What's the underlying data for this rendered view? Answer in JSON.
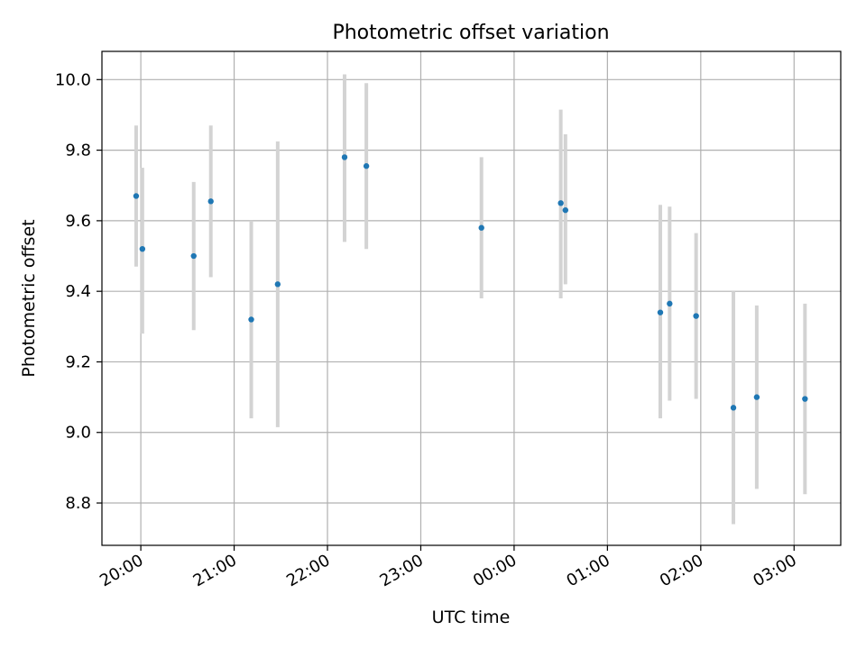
{
  "chart_data": {
    "type": "scatter",
    "title": "Photometric offset variation",
    "xlabel": "UTC time",
    "ylabel": "Photometric offset",
    "xlim": [
      "19:35",
      "03:30"
    ],
    "ylim": [
      8.68,
      10.08
    ],
    "x_ticks": [
      "20:00",
      "21:00",
      "22:00",
      "23:00",
      "00:00",
      "01:00",
      "02:00",
      "03:00"
    ],
    "y_ticks": [
      "8.8",
      "9.0",
      "9.2",
      "9.4",
      "9.6",
      "9.8",
      "10.0"
    ],
    "grid": true,
    "legend": "none",
    "colors": {
      "point": "#1f77b4",
      "errorbar": "#d3d3d3",
      "grid": "#b0b0b0"
    },
    "points": [
      {
        "x": "19:57",
        "y": 9.67,
        "ylow": 9.47,
        "yhigh": 9.87
      },
      {
        "x": "20:01",
        "y": 9.52,
        "ylow": 9.28,
        "yhigh": 9.75
      },
      {
        "x": "20:34",
        "y": 9.5,
        "ylow": 9.29,
        "yhigh": 9.71
      },
      {
        "x": "20:45",
        "y": 9.655,
        "ylow": 9.44,
        "yhigh": 9.87
      },
      {
        "x": "21:11",
        "y": 9.32,
        "ylow": 9.04,
        "yhigh": 9.6
      },
      {
        "x": "21:28",
        "y": 9.42,
        "ylow": 9.015,
        "yhigh": 9.825
      },
      {
        "x": "22:11",
        "y": 9.78,
        "ylow": 9.54,
        "yhigh": 10.015
      },
      {
        "x": "22:25",
        "y": 9.755,
        "ylow": 9.52,
        "yhigh": 9.99
      },
      {
        "x": "23:39",
        "y": 9.58,
        "ylow": 9.38,
        "yhigh": 9.78
      },
      {
        "x": "00:30",
        "y": 9.65,
        "ylow": 9.38,
        "yhigh": 9.915
      },
      {
        "x": "00:33",
        "y": 9.63,
        "ylow": 9.42,
        "yhigh": 9.845
      },
      {
        "x": "01:34",
        "y": 9.34,
        "ylow": 9.04,
        "yhigh": 9.645
      },
      {
        "x": "01:40",
        "y": 9.365,
        "ylow": 9.09,
        "yhigh": 9.64
      },
      {
        "x": "01:57",
        "y": 9.33,
        "ylow": 9.095,
        "yhigh": 9.565
      },
      {
        "x": "02:21",
        "y": 9.07,
        "ylow": 8.74,
        "yhigh": 9.4
      },
      {
        "x": "02:36",
        "y": 9.1,
        "ylow": 8.84,
        "yhigh": 9.36
      },
      {
        "x": "03:07",
        "y": 9.095,
        "ylow": 8.825,
        "yhigh": 9.365
      }
    ]
  }
}
